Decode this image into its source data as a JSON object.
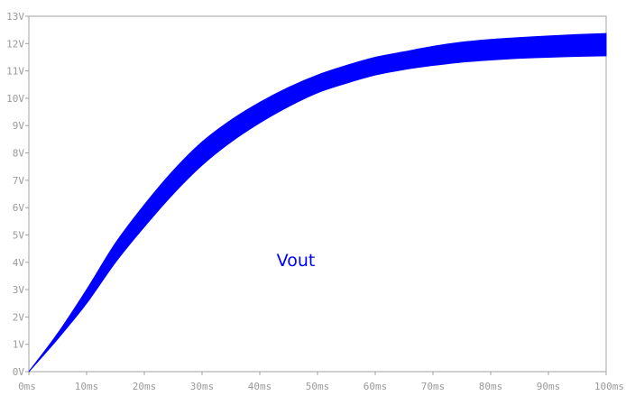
{
  "chart_data": {
    "type": "area",
    "title": "",
    "xlabel": "",
    "ylabel": "",
    "x_unit": "ms",
    "y_unit": "V",
    "xlim": [
      0,
      100
    ],
    "ylim": [
      0,
      13
    ],
    "x_ticks": [
      0,
      10,
      20,
      30,
      40,
      50,
      60,
      70,
      80,
      90,
      100
    ],
    "y_ticks": [
      0,
      1,
      2,
      3,
      4,
      5,
      6,
      7,
      8,
      9,
      10,
      11,
      12,
      13
    ],
    "x_tick_labels": [
      "0ms",
      "10ms",
      "20ms",
      "30ms",
      "40ms",
      "50ms",
      "60ms",
      "70ms",
      "80ms",
      "90ms",
      "100ms"
    ],
    "y_tick_labels": [
      "0V",
      "1V",
      "2V",
      "3V",
      "4V",
      "5V",
      "6V",
      "7V",
      "8V",
      "9V",
      "10V",
      "11V",
      "12V",
      "13V"
    ],
    "grid": false,
    "series": [
      {
        "name": "Vout",
        "color": "#0000ff",
        "x": [
          0,
          5,
          10,
          15,
          20,
          25,
          30,
          35,
          40,
          45,
          50,
          55,
          60,
          65,
          70,
          75,
          80,
          85,
          90,
          95,
          100
        ],
        "upper": [
          0,
          1.4,
          3.0,
          4.7,
          6.1,
          7.35,
          8.4,
          9.2,
          9.85,
          10.4,
          10.85,
          11.2,
          11.5,
          11.7,
          11.9,
          12.05,
          12.15,
          12.22,
          12.28,
          12.33,
          12.37
        ],
        "lower": [
          0,
          1.2,
          2.5,
          4.0,
          5.3,
          6.5,
          7.55,
          8.4,
          9.1,
          9.7,
          10.2,
          10.55,
          10.85,
          11.05,
          11.2,
          11.32,
          11.4,
          11.46,
          11.5,
          11.53,
          11.55
        ]
      }
    ]
  }
}
